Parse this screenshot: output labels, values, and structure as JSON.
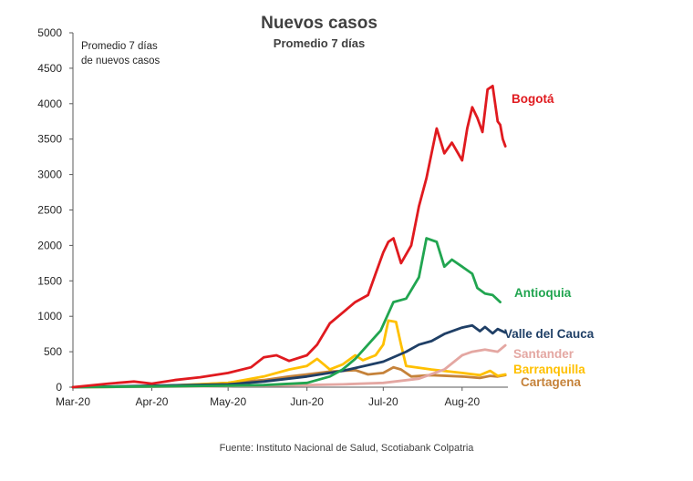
{
  "chart_data": {
    "type": "line",
    "title": "Nuevos casos",
    "subtitle": "Promedio 7 días",
    "ylabel_lines": [
      "Promedio 7 días",
      "de nuevos casos"
    ],
    "ylim": [
      0,
      5000
    ],
    "yticks": [
      0,
      500,
      1000,
      1500,
      2000,
      2500,
      3000,
      3500,
      4000,
      4500,
      5000
    ],
    "xlim": [
      "2020-03-01",
      "2020-08-19"
    ],
    "xticks": [
      {
        "date": "2020-03-01",
        "label": "Mar-20"
      },
      {
        "date": "2020-04-01",
        "label": "Apr-20"
      },
      {
        "date": "2020-05-01",
        "label": "May-20"
      },
      {
        "date": "2020-06-01",
        "label": "Jun-20"
      },
      {
        "date": "2020-07-01",
        "label": "Jul-20"
      },
      {
        "date": "2020-08-01",
        "label": "Aug-20"
      }
    ],
    "grid": false,
    "series": [
      {
        "name": "Cartagena",
        "color": "#c5823a",
        "points": [
          [
            "2020-03-01",
            0
          ],
          [
            "2020-03-20",
            5
          ],
          [
            "2020-04-01",
            15
          ],
          [
            "2020-04-15",
            30
          ],
          [
            "2020-05-01",
            60
          ],
          [
            "2020-05-15",
            100
          ],
          [
            "2020-05-25",
            150
          ],
          [
            "2020-06-01",
            180
          ],
          [
            "2020-06-10",
            220
          ],
          [
            "2020-06-20",
            240
          ],
          [
            "2020-06-25",
            180
          ],
          [
            "2020-07-01",
            200
          ],
          [
            "2020-07-05",
            280
          ],
          [
            "2020-07-08",
            250
          ],
          [
            "2020-07-12",
            150
          ],
          [
            "2020-07-20",
            170
          ],
          [
            "2020-08-01",
            150
          ],
          [
            "2020-08-08",
            130
          ],
          [
            "2020-08-12",
            160
          ],
          [
            "2020-08-15",
            150
          ],
          [
            "2020-08-18",
            170
          ]
        ]
      },
      {
        "name": "Barranquilla",
        "color": "#ffc000",
        "points": [
          [
            "2020-03-01",
            0
          ],
          [
            "2020-04-01",
            10
          ],
          [
            "2020-05-01",
            60
          ],
          [
            "2020-05-15",
            150
          ],
          [
            "2020-05-25",
            250
          ],
          [
            "2020-06-01",
            300
          ],
          [
            "2020-06-05",
            400
          ],
          [
            "2020-06-10",
            250
          ],
          [
            "2020-06-15",
            320
          ],
          [
            "2020-06-20",
            450
          ],
          [
            "2020-06-23",
            380
          ],
          [
            "2020-06-28",
            450
          ],
          [
            "2020-07-01",
            600
          ],
          [
            "2020-07-03",
            940
          ],
          [
            "2020-07-06",
            920
          ],
          [
            "2020-07-08",
            600
          ],
          [
            "2020-07-10",
            300
          ],
          [
            "2020-07-20",
            250
          ],
          [
            "2020-08-01",
            200
          ],
          [
            "2020-08-08",
            170
          ],
          [
            "2020-08-12",
            230
          ],
          [
            "2020-08-15",
            160
          ],
          [
            "2020-08-18",
            180
          ]
        ]
      },
      {
        "name": "Santander",
        "color": "#e4a7a2",
        "points": [
          [
            "2020-03-01",
            0
          ],
          [
            "2020-04-01",
            5
          ],
          [
            "2020-05-01",
            15
          ],
          [
            "2020-06-01",
            30
          ],
          [
            "2020-06-15",
            40
          ],
          [
            "2020-07-01",
            60
          ],
          [
            "2020-07-15",
            120
          ],
          [
            "2020-07-25",
            250
          ],
          [
            "2020-08-01",
            450
          ],
          [
            "2020-08-05",
            500
          ],
          [
            "2020-08-10",
            530
          ],
          [
            "2020-08-15",
            500
          ],
          [
            "2020-08-18",
            590
          ]
        ]
      },
      {
        "name": "Valle del Cauca",
        "color": "#1f3f66",
        "points": [
          [
            "2020-03-01",
            0
          ],
          [
            "2020-04-01",
            20
          ],
          [
            "2020-05-01",
            40
          ],
          [
            "2020-05-15",
            80
          ],
          [
            "2020-06-01",
            150
          ],
          [
            "2020-06-15",
            230
          ],
          [
            "2020-07-01",
            360
          ],
          [
            "2020-07-10",
            500
          ],
          [
            "2020-07-15",
            600
          ],
          [
            "2020-07-20",
            650
          ],
          [
            "2020-07-25",
            750
          ],
          [
            "2020-08-01",
            840
          ],
          [
            "2020-08-05",
            870
          ],
          [
            "2020-08-08",
            790
          ],
          [
            "2020-08-10",
            850
          ],
          [
            "2020-08-13",
            760
          ],
          [
            "2020-08-15",
            820
          ],
          [
            "2020-08-18",
            770
          ]
        ]
      },
      {
        "name": "Antioquia",
        "color": "#21a550",
        "points": [
          [
            "2020-03-01",
            0
          ],
          [
            "2020-04-01",
            10
          ],
          [
            "2020-05-01",
            20
          ],
          [
            "2020-05-15",
            30
          ],
          [
            "2020-06-01",
            60
          ],
          [
            "2020-06-10",
            150
          ],
          [
            "2020-06-15",
            250
          ],
          [
            "2020-06-20",
            400
          ],
          [
            "2020-06-25",
            600
          ],
          [
            "2020-06-30",
            800
          ],
          [
            "2020-07-05",
            1200
          ],
          [
            "2020-07-10",
            1250
          ],
          [
            "2020-07-15",
            1550
          ],
          [
            "2020-07-18",
            2100
          ],
          [
            "2020-07-22",
            2050
          ],
          [
            "2020-07-25",
            1700
          ],
          [
            "2020-07-28",
            1800
          ],
          [
            "2020-08-01",
            1700
          ],
          [
            "2020-08-05",
            1600
          ],
          [
            "2020-08-07",
            1400
          ],
          [
            "2020-08-10",
            1320
          ],
          [
            "2020-08-13",
            1300
          ],
          [
            "2020-08-16",
            1200
          ]
        ]
      },
      {
        "name": "Bogotá",
        "color": "#e01a1f",
        "points": [
          [
            "2020-03-01",
            0
          ],
          [
            "2020-03-15",
            50
          ],
          [
            "2020-03-25",
            80
          ],
          [
            "2020-04-01",
            50
          ],
          [
            "2020-04-10",
            100
          ],
          [
            "2020-04-20",
            140
          ],
          [
            "2020-05-01",
            200
          ],
          [
            "2020-05-10",
            280
          ],
          [
            "2020-05-15",
            420
          ],
          [
            "2020-05-20",
            450
          ],
          [
            "2020-05-25",
            370
          ],
          [
            "2020-06-01",
            450
          ],
          [
            "2020-06-05",
            600
          ],
          [
            "2020-06-10",
            900
          ],
          [
            "2020-06-15",
            1050
          ],
          [
            "2020-06-20",
            1200
          ],
          [
            "2020-06-25",
            1300
          ],
          [
            "2020-06-28",
            1600
          ],
          [
            "2020-07-01",
            1900
          ],
          [
            "2020-07-03",
            2050
          ],
          [
            "2020-07-05",
            2100
          ],
          [
            "2020-07-08",
            1750
          ],
          [
            "2020-07-12",
            2000
          ],
          [
            "2020-07-15",
            2550
          ],
          [
            "2020-07-18",
            2950
          ],
          [
            "2020-07-22",
            3650
          ],
          [
            "2020-07-25",
            3300
          ],
          [
            "2020-07-28",
            3450
          ],
          [
            "2020-08-01",
            3200
          ],
          [
            "2020-08-03",
            3650
          ],
          [
            "2020-08-05",
            3950
          ],
          [
            "2020-08-07",
            3800
          ],
          [
            "2020-08-09",
            3600
          ],
          [
            "2020-08-11",
            4200
          ],
          [
            "2020-08-13",
            4250
          ],
          [
            "2020-08-15",
            3750
          ],
          [
            "2020-08-16",
            3700
          ],
          [
            "2020-08-17",
            3500
          ],
          [
            "2020-08-18",
            3400
          ]
        ]
      }
    ]
  },
  "source": "Fuente: Instituto Nacional de Salud, Scotiabank Colpatria"
}
